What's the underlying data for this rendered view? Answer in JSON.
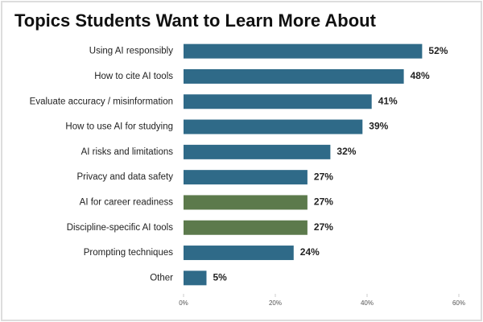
{
  "chart_data": {
    "type": "hbar",
    "title": "Topics Students Want to Learn More About",
    "categories": [
      "Using AI responsibly",
      "How to cite AI tools",
      "Evaluate accuracy / misinformation",
      "How to use AI for studying",
      "AI risks and limitations",
      "Privacy and data safety",
      "AI for career readiness",
      "Discipline-specific AI tools",
      "Prompting techniques",
      "Other"
    ],
    "values": [
      52,
      48,
      41,
      39,
      32,
      27,
      27,
      27,
      24,
      5
    ],
    "value_labels": [
      "52%",
      "48%",
      "41%",
      "39%",
      "32%",
      "27%",
      "27%",
      "27%",
      "24%",
      "5%"
    ],
    "colors": [
      "#2f6a88",
      "#2f6a88",
      "#2f6a88",
      "#2f6a88",
      "#2f6a88",
      "#2f6a88",
      "#5c7a4c",
      "#5c7a4c",
      "#2f6a88",
      "#2f6a88"
    ],
    "xlim": [
      0,
      60
    ],
    "xticks": [
      {
        "value": 0,
        "label": "0%"
      },
      {
        "value": 20,
        "label": "20%"
      },
      {
        "value": 40,
        "label": "40%"
      },
      {
        "value": 60,
        "label": "60%"
      }
    ]
  }
}
